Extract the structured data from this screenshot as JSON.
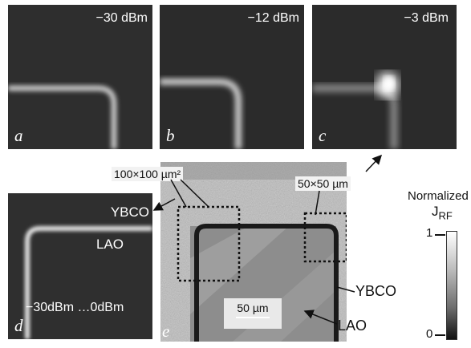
{
  "panels": {
    "a": {
      "letter": "a",
      "power": "−30 dBm"
    },
    "b": {
      "letter": "b",
      "power": "−12 dBm"
    },
    "c": {
      "letter": "c",
      "power": "−3 dBm"
    },
    "d": {
      "letter": "d",
      "power_range": "−30dBm …0dBm",
      "label_top": "YBCO",
      "label_bottom": "LAO"
    },
    "e": {
      "letter": "e",
      "scale_bar": "50 µm"
    }
  },
  "callouts": {
    "large_area": "100×100 µm²",
    "small_area": "50×50 µm"
  },
  "side_labels": {
    "ybco": "YBCO",
    "lao": "LAO"
  },
  "colorbar": {
    "title_line1": "Normalized",
    "title_line2": "J",
    "title_sub": "RF",
    "top_tick": "1",
    "bottom_tick": "0"
  }
}
